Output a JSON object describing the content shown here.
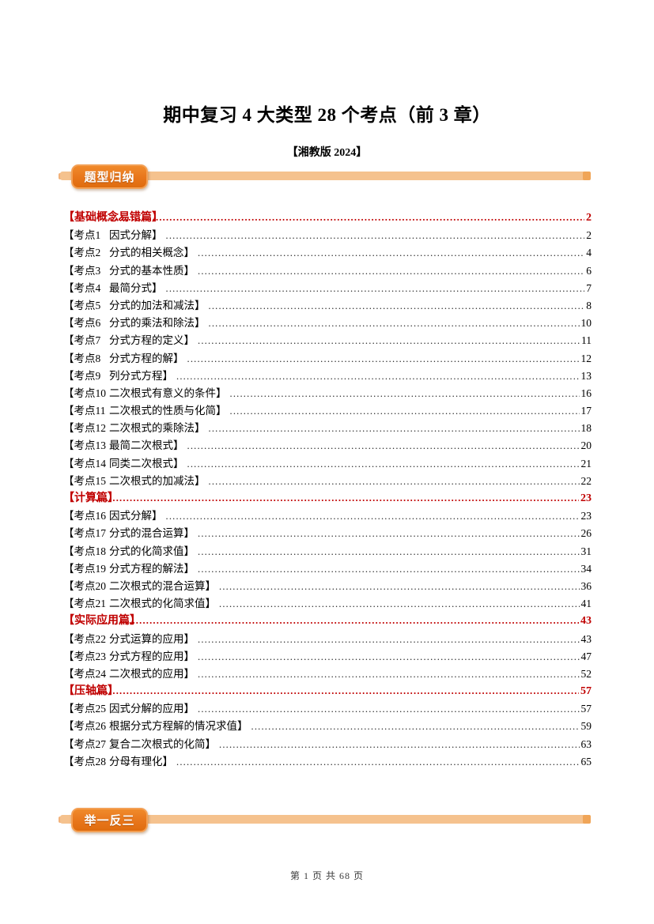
{
  "page": {
    "title": "期中复习 4 大类型 28 个考点（前 3 章）",
    "subtitle": "【湘教版 2024】",
    "footer": "第 1 页 共 68 页"
  },
  "banners": {
    "top_label": "题型归纳",
    "bottom_label": "举一反三"
  },
  "colors": {
    "badge_orange": "#E8761B",
    "bar_orange": "#F5C28E",
    "bar_tip_orange": "#F0A558",
    "section_red": "#C00000",
    "body_text": "#000000"
  },
  "toc": {
    "entries": [
      {
        "type": "section",
        "label": "【基础概念易错篇】",
        "title": "",
        "page": "2"
      },
      {
        "type": "item",
        "label": "【考点1",
        "title": "因式分解】",
        "page": "2"
      },
      {
        "type": "item",
        "label": "【考点2",
        "title": "分式的相关概念】",
        "page": "4"
      },
      {
        "type": "item",
        "label": "【考点3",
        "title": "分式的基本性质】",
        "page": "6"
      },
      {
        "type": "item",
        "label": "【考点4",
        "title": "最简分式】",
        "page": "7"
      },
      {
        "type": "item",
        "label": "【考点5",
        "title": "分式的加法和减法】",
        "page": "8"
      },
      {
        "type": "item",
        "label": "【考点6",
        "title": "分式的乘法和除法】",
        "page": "10"
      },
      {
        "type": "item",
        "label": "【考点7",
        "title": "分式方程的定义】",
        "page": "11"
      },
      {
        "type": "item",
        "label": "【考点8",
        "title": "分式方程的解】",
        "page": "12"
      },
      {
        "type": "item",
        "label": "【考点9",
        "title": "列分式方程】",
        "page": "13"
      },
      {
        "type": "item",
        "label": "【考点10",
        "title": "二次根式有意义的条件】",
        "page": "16"
      },
      {
        "type": "item",
        "label": "【考点11",
        "title": "二次根式的性质与化简】",
        "page": "17"
      },
      {
        "type": "item",
        "label": "【考点12",
        "title": "二次根式的乘除法】",
        "page": "18"
      },
      {
        "type": "item",
        "label": "【考点13",
        "title": "最简二次根式】",
        "page": "20"
      },
      {
        "type": "item",
        "label": "【考点14",
        "title": "同类二次根式】",
        "page": "21"
      },
      {
        "type": "item",
        "label": "【考点15",
        "title": "二次根式的加减法】",
        "page": "22"
      },
      {
        "type": "section",
        "label": "【计算篇】",
        "title": "",
        "page": "23"
      },
      {
        "type": "item",
        "label": "【考点16",
        "title": "因式分解】",
        "page": "23"
      },
      {
        "type": "item",
        "label": "【考点17",
        "title": "分式的混合运算】",
        "page": "26"
      },
      {
        "type": "item",
        "label": "【考点18",
        "title": "分式的化简求值】",
        "page": "31"
      },
      {
        "type": "item",
        "label": "【考点19",
        "title": "分式方程的解法】",
        "page": "34"
      },
      {
        "type": "item",
        "label": "【考点20",
        "title": "二次根式的混合运算】",
        "page": "36"
      },
      {
        "type": "item",
        "label": "【考点21",
        "title": "二次根式的化简求值】",
        "page": "41"
      },
      {
        "type": "section",
        "label": "【实际应用篇】",
        "title": "",
        "page": "43"
      },
      {
        "type": "item",
        "label": "【考点22",
        "title": "分式运算的应用】",
        "page": "43"
      },
      {
        "type": "item",
        "label": "【考点23",
        "title": "分式方程的应用】",
        "page": "47"
      },
      {
        "type": "item",
        "label": "【考点24",
        "title": "二次根式的应用】",
        "page": "52"
      },
      {
        "type": "section",
        "label": "【压轴篇】",
        "title": "",
        "page": "57"
      },
      {
        "type": "item",
        "label": "【考点25",
        "title": "因式分解的应用】",
        "page": "57"
      },
      {
        "type": "item",
        "label": "【考点26",
        "title": "根据分式方程解的情况求值】",
        "page": "59"
      },
      {
        "type": "item",
        "label": "【考点27",
        "title": "复合二次根式的化简】",
        "page": "63"
      },
      {
        "type": "item",
        "label": "【考点28",
        "title": "分母有理化】",
        "page": "65"
      }
    ]
  }
}
